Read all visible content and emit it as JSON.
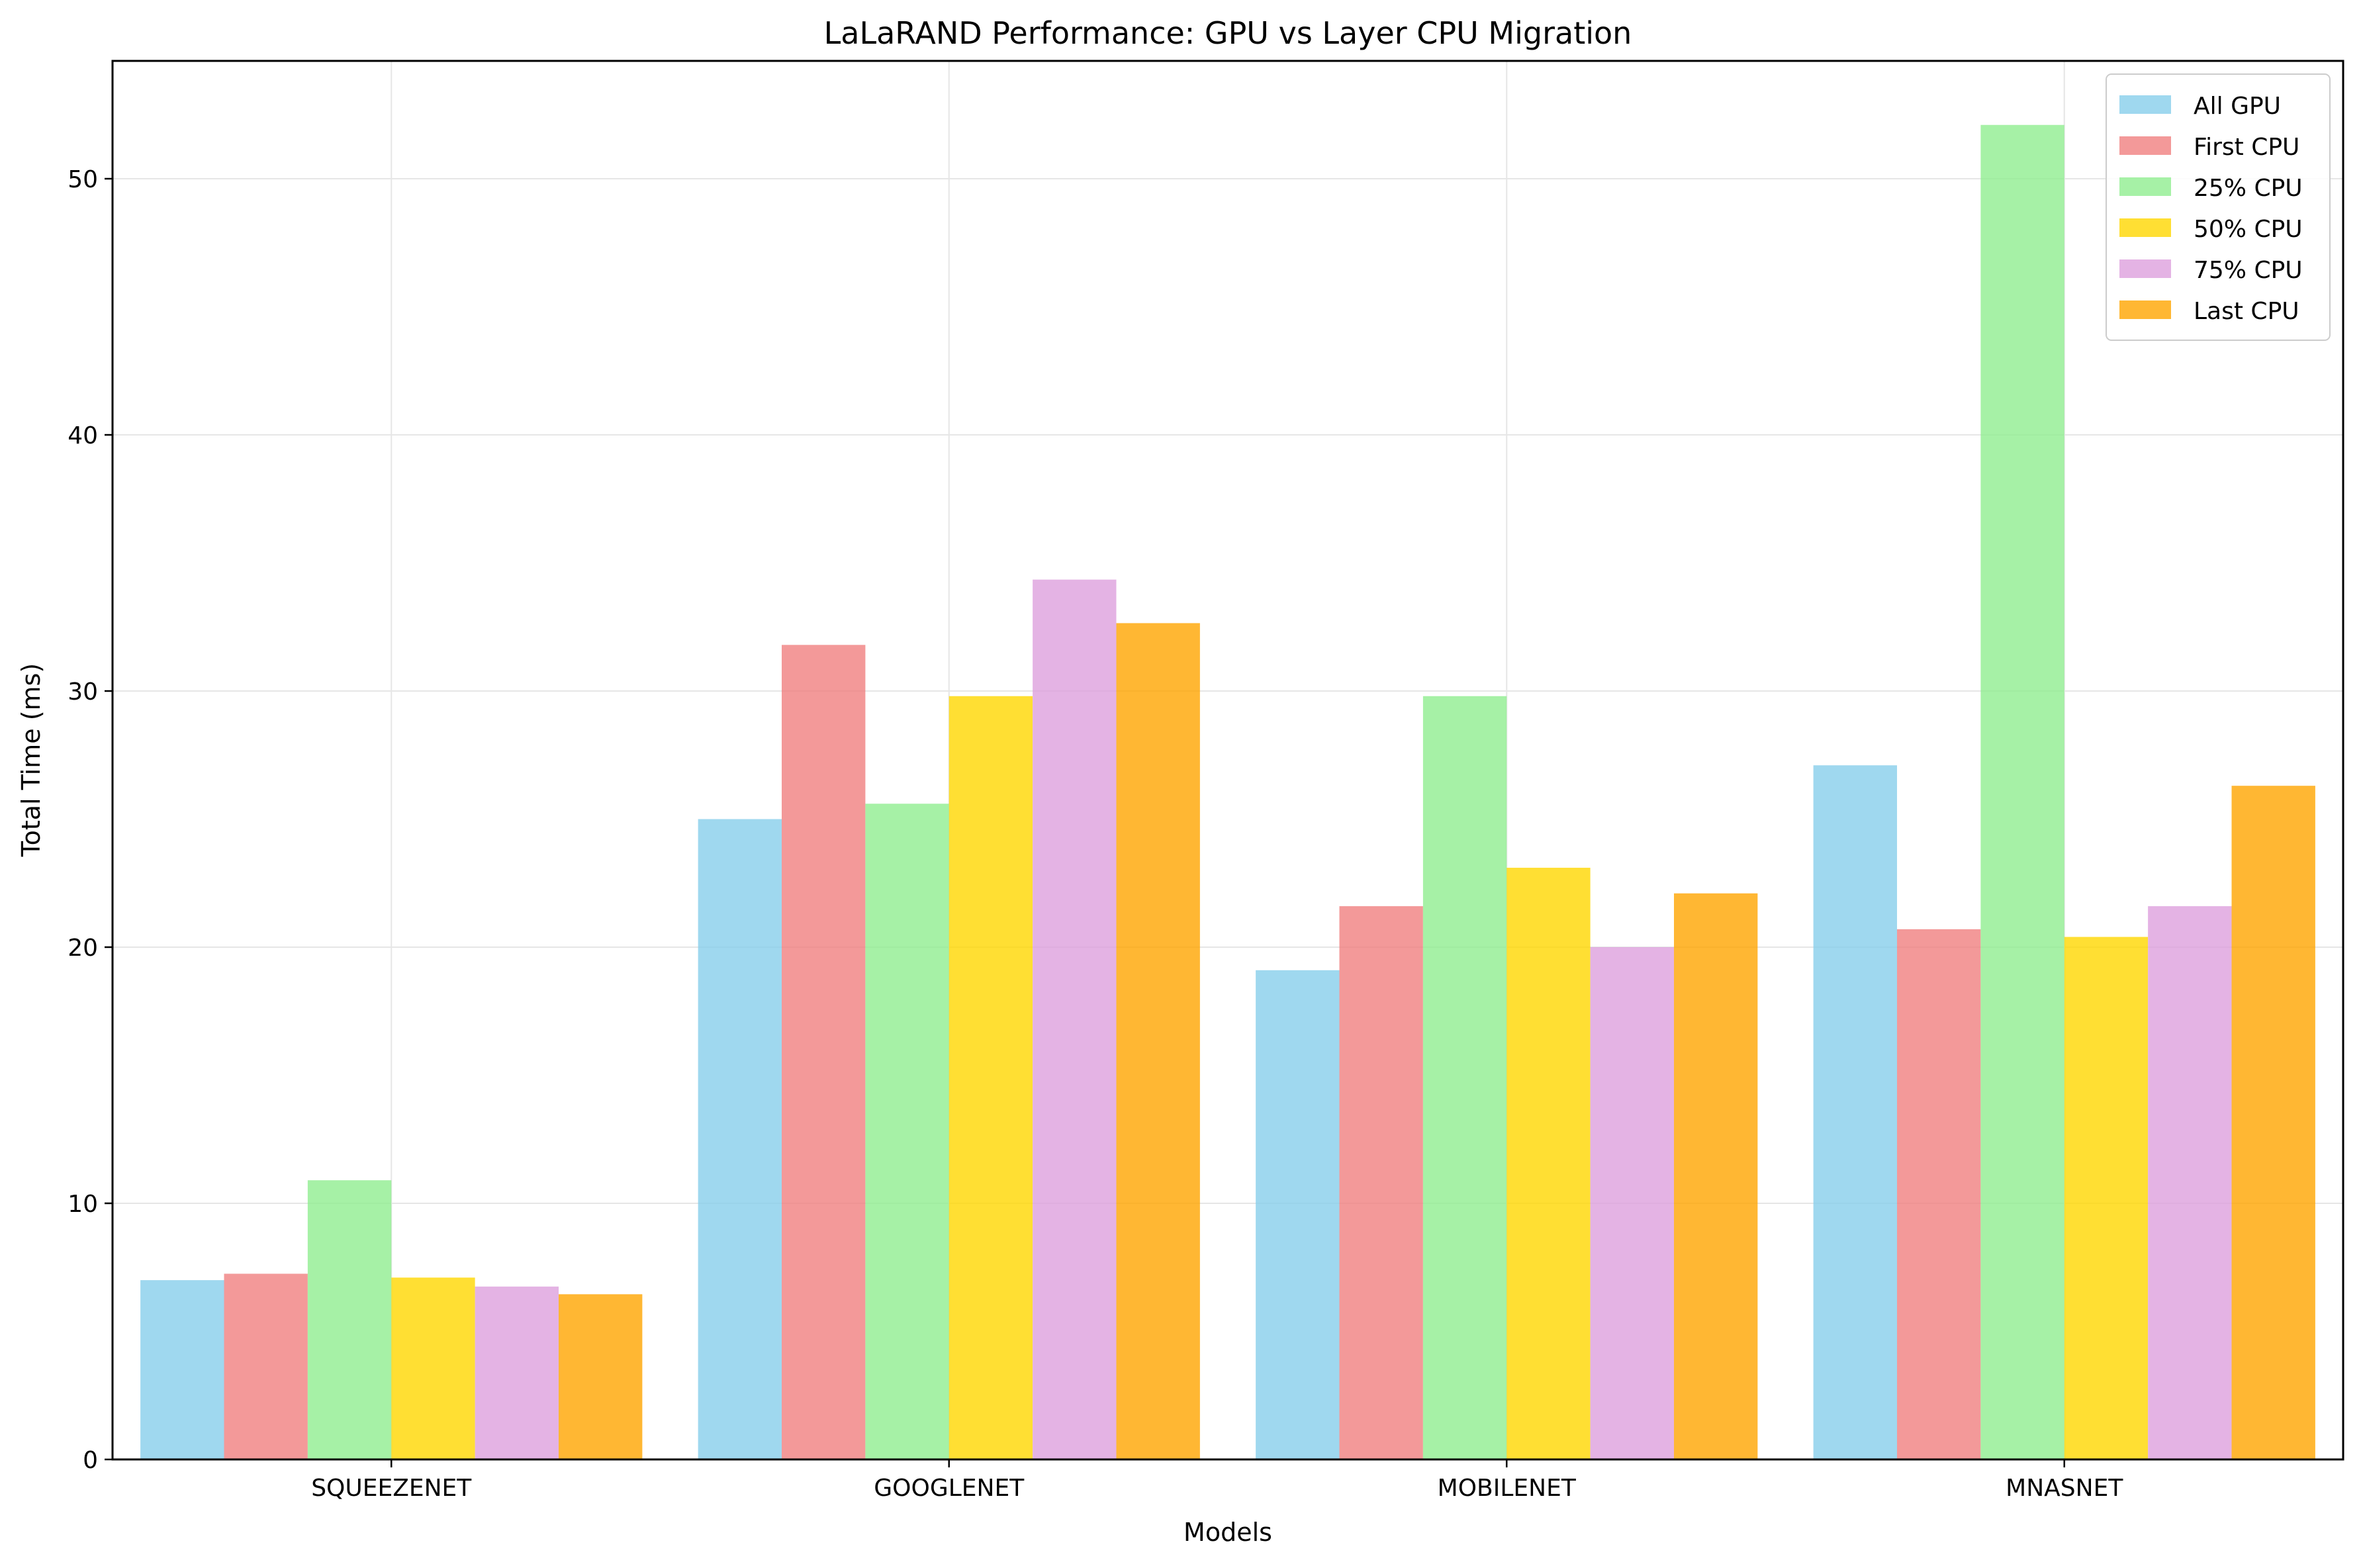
{
  "chart_data": {
    "type": "bar",
    "title": "LaLaRAND Performance: GPU vs Layer CPU Migration",
    "xlabel": "Models",
    "ylabel": "Total Time (ms)",
    "categories": [
      "SQUEEZENET",
      "GOOGLENET",
      "MOBILENET",
      "MNASNET"
    ],
    "ylim": [
      0,
      54.6
    ],
    "yticks": [
      0,
      10,
      20,
      30,
      40,
      50
    ],
    "grid": true,
    "legend_position": "top-right",
    "series": [
      {
        "name": "All GPU",
        "color": "#87CEEB",
        "values": [
          7.0,
          25.0,
          19.1,
          27.1
        ]
      },
      {
        "name": "First CPU",
        "color": "#F08080",
        "values": [
          7.25,
          31.8,
          21.6,
          20.7
        ]
      },
      {
        "name": "25% CPU",
        "color": "#90EE90",
        "values": [
          10.9,
          25.6,
          29.8,
          52.1
        ]
      },
      {
        "name": "50% CPU",
        "color": "#FFD700",
        "values": [
          7.1,
          29.8,
          23.1,
          20.4
        ]
      },
      {
        "name": "75% CPU",
        "color": "#DDA0DD",
        "values": [
          6.75,
          34.35,
          20.0,
          21.6
        ]
      },
      {
        "name": "Last CPU",
        "color": "#FFA500",
        "values": [
          6.45,
          32.65,
          22.1,
          26.3
        ]
      }
    ]
  }
}
